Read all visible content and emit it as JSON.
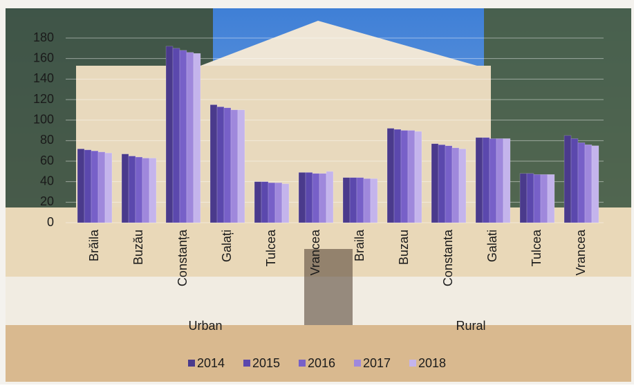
{
  "chart_data": {
    "type": "bar",
    "categories": [
      "Brăila",
      "Buzău",
      "Constanța",
      "Galați",
      "Tulcea",
      "Vrancea",
      "Braila",
      "Buzau",
      "Constanta",
      "Galati",
      "Tulcea",
      "Vrancea"
    ],
    "group_labels": [
      "Urban",
      "Rural"
    ],
    "series": [
      {
        "name": "2014",
        "color": "#4a3a8c",
        "values": [
          72,
          67,
          172,
          115,
          40,
          49,
          44,
          92,
          77,
          83,
          48,
          85
        ]
      },
      {
        "name": "2015",
        "color": "#5b48ad",
        "values": [
          71,
          65,
          170,
          113,
          40,
          49,
          44,
          91,
          76,
          83,
          48,
          82
        ]
      },
      {
        "name": "2016",
        "color": "#7760c8",
        "values": [
          70,
          64,
          168,
          112,
          39,
          48,
          44,
          90,
          75,
          82,
          47,
          78
        ]
      },
      {
        "name": "2017",
        "color": "#9f88dc",
        "values": [
          69,
          63,
          166,
          110,
          39,
          48,
          43,
          90,
          73,
          82,
          47,
          76
        ]
      },
      {
        "name": "2018",
        "color": "#c4b4ec",
        "values": [
          68,
          63,
          165,
          110,
          38,
          50,
          43,
          89,
          72,
          82,
          47,
          75
        ]
      }
    ],
    "ylim": [
      0,
      180
    ],
    "yticks": [
      0,
      20,
      40,
      60,
      80,
      100,
      120,
      140,
      160,
      180
    ],
    "grid": true
  }
}
